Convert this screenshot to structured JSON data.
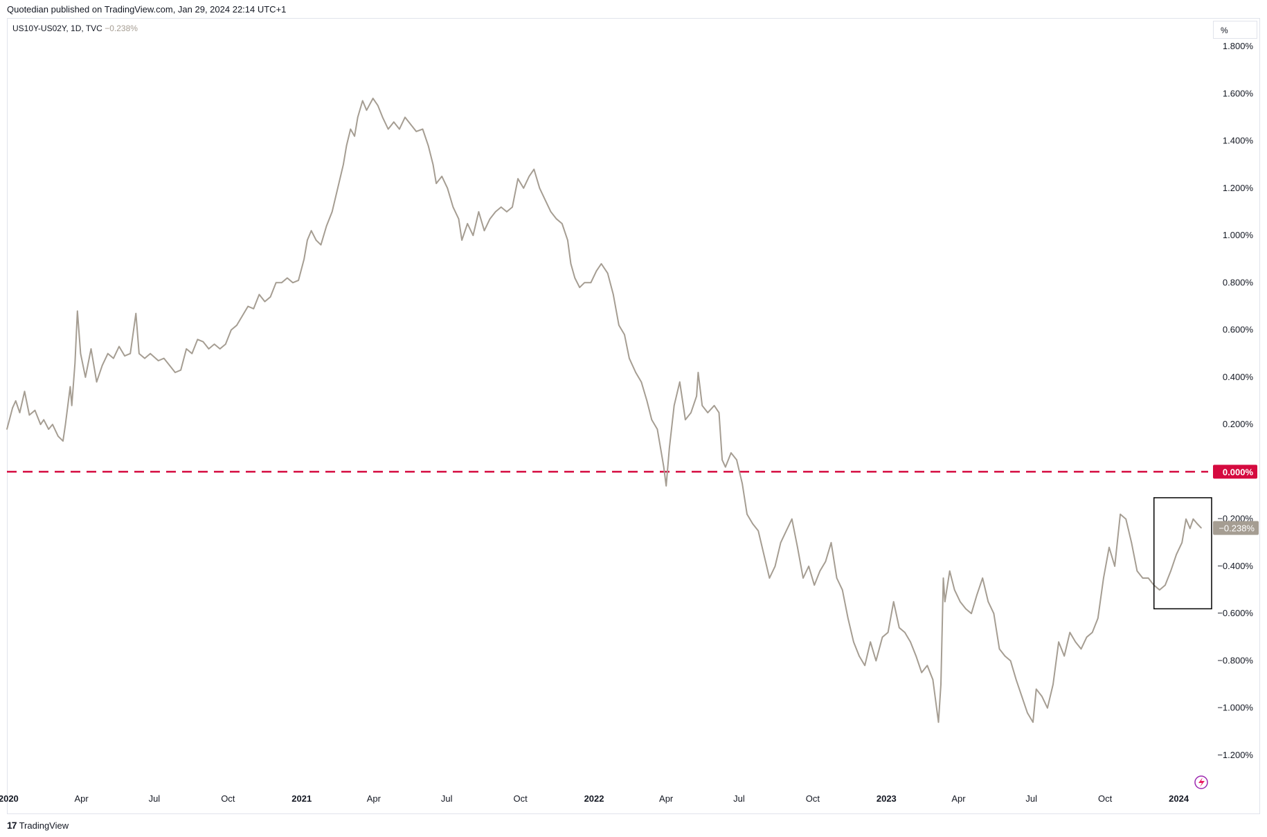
{
  "header": {
    "publish_text": "Quotedian published on TradingView.com, Jan 29, 2024 22:14 UTC+1"
  },
  "symbol": {
    "label": "US10Y-US02Y, 1D, TVC",
    "last_value": "−0.238%"
  },
  "unit_button": "%",
  "footer": {
    "logo_glyph": "17",
    "brand": "TradingView"
  },
  "colors": {
    "line": "#a59d92",
    "zero_line": "#d50a3f",
    "price_label_bg": "#a59d92",
    "zero_label_bg": "#d50a3f",
    "grid": "none"
  },
  "chart_data": {
    "type": "line",
    "title": "US10Y-US02Y, 1D, TVC",
    "xlabel": "",
    "ylabel": "%",
    "ylim": [
      -1.3,
      1.85
    ],
    "grid": false,
    "x_ticks": [
      {
        "label": "2020",
        "x": "2020-01-01",
        "year": true
      },
      {
        "label": "Apr",
        "x": "2020-04-01",
        "year": false
      },
      {
        "label": "Jul",
        "x": "2020-07-01",
        "year": false
      },
      {
        "label": "Oct",
        "x": "2020-10-01",
        "year": false
      },
      {
        "label": "2021",
        "x": "2021-01-01",
        "year": true
      },
      {
        "label": "Apr",
        "x": "2021-04-01",
        "year": false
      },
      {
        "label": "Jul",
        "x": "2021-07-01",
        "year": false
      },
      {
        "label": "Oct",
        "x": "2021-10-01",
        "year": false
      },
      {
        "label": "2022",
        "x": "2022-01-01",
        "year": true
      },
      {
        "label": "Apr",
        "x": "2022-04-01",
        "year": false
      },
      {
        "label": "Jul",
        "x": "2022-07-01",
        "year": false
      },
      {
        "label": "Oct",
        "x": "2022-10-01",
        "year": false
      },
      {
        "label": "2023",
        "x": "2023-01-01",
        "year": true
      },
      {
        "label": "Apr",
        "x": "2023-04-01",
        "year": false
      },
      {
        "label": "Jul",
        "x": "2023-07-01",
        "year": false
      },
      {
        "label": "Oct",
        "x": "2023-10-01",
        "year": false
      },
      {
        "label": "2024",
        "x": "2024-01-01",
        "year": true
      }
    ],
    "y_ticks": [
      {
        "value": 1.8,
        "label": "1.800%"
      },
      {
        "value": 1.6,
        "label": "1.600%"
      },
      {
        "value": 1.4,
        "label": "1.400%"
      },
      {
        "value": 1.2,
        "label": "1.200%"
      },
      {
        "value": 1.0,
        "label": "1.000%"
      },
      {
        "value": 0.8,
        "label": "0.800%"
      },
      {
        "value": 0.6,
        "label": "0.600%"
      },
      {
        "value": 0.4,
        "label": "0.400%"
      },
      {
        "value": 0.2,
        "label": "0.200%"
      },
      {
        "value": -0.2,
        "label": "−0.200%"
      },
      {
        "value": -0.4,
        "label": "−0.400%"
      },
      {
        "value": -0.6,
        "label": "−0.600%"
      },
      {
        "value": -0.8,
        "label": "−0.800%"
      },
      {
        "value": -1.0,
        "label": "−1.000%"
      },
      {
        "value": -1.2,
        "label": "−1.200%"
      }
    ],
    "zero_line": {
      "value": 0.0,
      "label": "0.000%"
    },
    "last_price": {
      "value": -0.238,
      "label": "−0.238%"
    },
    "highlight_box": {
      "x_start": "2023-12-01",
      "x_end": "2024-01-29",
      "y_low": -0.58,
      "y_high": -0.11
    },
    "series": [
      {
        "values": [
          [
            "2019-12-30",
            0.18
          ],
          [
            "2020-01-06",
            0.27
          ],
          [
            "2020-01-10",
            0.3
          ],
          [
            "2020-01-15",
            0.25
          ],
          [
            "2020-01-21",
            0.34
          ],
          [
            "2020-01-27",
            0.24
          ],
          [
            "2020-02-03",
            0.26
          ],
          [
            "2020-02-10",
            0.2
          ],
          [
            "2020-02-14",
            0.22
          ],
          [
            "2020-02-20",
            0.18
          ],
          [
            "2020-02-25",
            0.2
          ],
          [
            "2020-03-03",
            0.15
          ],
          [
            "2020-03-09",
            0.13
          ],
          [
            "2020-03-12",
            0.2
          ],
          [
            "2020-03-18",
            0.36
          ],
          [
            "2020-03-20",
            0.28
          ],
          [
            "2020-03-24",
            0.46
          ],
          [
            "2020-03-27",
            0.68
          ],
          [
            "2020-03-31",
            0.5
          ],
          [
            "2020-04-06",
            0.4
          ],
          [
            "2020-04-13",
            0.52
          ],
          [
            "2020-04-20",
            0.38
          ],
          [
            "2020-04-27",
            0.45
          ],
          [
            "2020-05-04",
            0.5
          ],
          [
            "2020-05-11",
            0.48
          ],
          [
            "2020-05-18",
            0.53
          ],
          [
            "2020-05-25",
            0.49
          ],
          [
            "2020-06-01",
            0.5
          ],
          [
            "2020-06-08",
            0.67
          ],
          [
            "2020-06-12",
            0.5
          ],
          [
            "2020-06-19",
            0.48
          ],
          [
            "2020-06-26",
            0.5
          ],
          [
            "2020-07-06",
            0.47
          ],
          [
            "2020-07-13",
            0.48
          ],
          [
            "2020-07-20",
            0.45
          ],
          [
            "2020-07-27",
            0.42
          ],
          [
            "2020-08-03",
            0.43
          ],
          [
            "2020-08-10",
            0.52
          ],
          [
            "2020-08-17",
            0.5
          ],
          [
            "2020-08-24",
            0.56
          ],
          [
            "2020-08-31",
            0.55
          ],
          [
            "2020-09-07",
            0.52
          ],
          [
            "2020-09-14",
            0.54
          ],
          [
            "2020-09-21",
            0.52
          ],
          [
            "2020-09-28",
            0.54
          ],
          [
            "2020-10-05",
            0.6
          ],
          [
            "2020-10-12",
            0.62
          ],
          [
            "2020-10-19",
            0.66
          ],
          [
            "2020-10-26",
            0.7
          ],
          [
            "2020-11-02",
            0.69
          ],
          [
            "2020-11-09",
            0.75
          ],
          [
            "2020-11-16",
            0.72
          ],
          [
            "2020-11-23",
            0.74
          ],
          [
            "2020-11-30",
            0.8
          ],
          [
            "2020-12-07",
            0.8
          ],
          [
            "2020-12-14",
            0.82
          ],
          [
            "2020-12-21",
            0.8
          ],
          [
            "2020-12-28",
            0.81
          ],
          [
            "2021-01-04",
            0.9
          ],
          [
            "2021-01-08",
            0.98
          ],
          [
            "2021-01-13",
            1.02
          ],
          [
            "2021-01-19",
            0.98
          ],
          [
            "2021-01-25",
            0.96
          ],
          [
            "2021-02-01",
            1.04
          ],
          [
            "2021-02-08",
            1.1
          ],
          [
            "2021-02-15",
            1.2
          ],
          [
            "2021-02-22",
            1.3
          ],
          [
            "2021-02-26",
            1.38
          ],
          [
            "2021-03-03",
            1.45
          ],
          [
            "2021-03-08",
            1.42
          ],
          [
            "2021-03-12",
            1.5
          ],
          [
            "2021-03-18",
            1.57
          ],
          [
            "2021-03-23",
            1.53
          ],
          [
            "2021-03-31",
            1.58
          ],
          [
            "2021-04-06",
            1.55
          ],
          [
            "2021-04-12",
            1.5
          ],
          [
            "2021-04-19",
            1.45
          ],
          [
            "2021-04-26",
            1.48
          ],
          [
            "2021-05-03",
            1.45
          ],
          [
            "2021-05-10",
            1.5
          ],
          [
            "2021-05-17",
            1.47
          ],
          [
            "2021-05-24",
            1.44
          ],
          [
            "2021-06-01",
            1.45
          ],
          [
            "2021-06-08",
            1.38
          ],
          [
            "2021-06-14",
            1.3
          ],
          [
            "2021-06-18",
            1.22
          ],
          [
            "2021-06-25",
            1.25
          ],
          [
            "2021-07-02",
            1.2
          ],
          [
            "2021-07-09",
            1.12
          ],
          [
            "2021-07-16",
            1.07
          ],
          [
            "2021-07-20",
            0.98
          ],
          [
            "2021-07-27",
            1.05
          ],
          [
            "2021-08-03",
            1.0
          ],
          [
            "2021-08-10",
            1.1
          ],
          [
            "2021-08-17",
            1.02
          ],
          [
            "2021-08-24",
            1.07
          ],
          [
            "2021-08-31",
            1.1
          ],
          [
            "2021-09-07",
            1.12
          ],
          [
            "2021-09-14",
            1.1
          ],
          [
            "2021-09-21",
            1.12
          ],
          [
            "2021-09-28",
            1.24
          ],
          [
            "2021-10-05",
            1.2
          ],
          [
            "2021-10-12",
            1.25
          ],
          [
            "2021-10-18",
            1.28
          ],
          [
            "2021-10-25",
            1.2
          ],
          [
            "2021-11-01",
            1.15
          ],
          [
            "2021-11-08",
            1.1
          ],
          [
            "2021-11-15",
            1.07
          ],
          [
            "2021-11-22",
            1.05
          ],
          [
            "2021-11-29",
            0.98
          ],
          [
            "2021-12-03",
            0.88
          ],
          [
            "2021-12-08",
            0.82
          ],
          [
            "2021-12-14",
            0.78
          ],
          [
            "2021-12-20",
            0.8
          ],
          [
            "2021-12-28",
            0.8
          ],
          [
            "2022-01-04",
            0.85
          ],
          [
            "2022-01-10",
            0.88
          ],
          [
            "2022-01-18",
            0.84
          ],
          [
            "2022-01-25",
            0.75
          ],
          [
            "2022-02-01",
            0.62
          ],
          [
            "2022-02-08",
            0.58
          ],
          [
            "2022-02-14",
            0.48
          ],
          [
            "2022-02-22",
            0.42
          ],
          [
            "2022-03-01",
            0.38
          ],
          [
            "2022-03-08",
            0.3
          ],
          [
            "2022-03-14",
            0.22
          ],
          [
            "2022-03-21",
            0.18
          ],
          [
            "2022-03-25",
            0.1
          ],
          [
            "2022-03-29",
            0.02
          ],
          [
            "2022-04-01",
            -0.06
          ],
          [
            "2022-04-05",
            0.1
          ],
          [
            "2022-04-11",
            0.28
          ],
          [
            "2022-04-18",
            0.38
          ],
          [
            "2022-04-25",
            0.22
          ],
          [
            "2022-05-02",
            0.25
          ],
          [
            "2022-05-09",
            0.32
          ],
          [
            "2022-05-11",
            0.42
          ],
          [
            "2022-05-16",
            0.28
          ],
          [
            "2022-05-23",
            0.25
          ],
          [
            "2022-05-31",
            0.28
          ],
          [
            "2022-06-06",
            0.25
          ],
          [
            "2022-06-10",
            0.05
          ],
          [
            "2022-06-14",
            0.02
          ],
          [
            "2022-06-21",
            0.08
          ],
          [
            "2022-06-28",
            0.05
          ],
          [
            "2022-07-05",
            -0.05
          ],
          [
            "2022-07-11",
            -0.18
          ],
          [
            "2022-07-18",
            -0.22
          ],
          [
            "2022-07-25",
            -0.25
          ],
          [
            "2022-08-01",
            -0.35
          ],
          [
            "2022-08-08",
            -0.45
          ],
          [
            "2022-08-15",
            -0.4
          ],
          [
            "2022-08-22",
            -0.3
          ],
          [
            "2022-08-29",
            -0.25
          ],
          [
            "2022-09-05",
            -0.2
          ],
          [
            "2022-09-12",
            -0.32
          ],
          [
            "2022-09-19",
            -0.45
          ],
          [
            "2022-09-26",
            -0.4
          ],
          [
            "2022-10-03",
            -0.48
          ],
          [
            "2022-10-10",
            -0.42
          ],
          [
            "2022-10-17",
            -0.38
          ],
          [
            "2022-10-24",
            -0.3
          ],
          [
            "2022-10-31",
            -0.45
          ],
          [
            "2022-11-07",
            -0.5
          ],
          [
            "2022-11-14",
            -0.62
          ],
          [
            "2022-11-21",
            -0.72
          ],
          [
            "2022-11-28",
            -0.78
          ],
          [
            "2022-12-05",
            -0.82
          ],
          [
            "2022-12-12",
            -0.72
          ],
          [
            "2022-12-19",
            -0.8
          ],
          [
            "2022-12-27",
            -0.7
          ],
          [
            "2023-01-03",
            -0.68
          ],
          [
            "2023-01-10",
            -0.55
          ],
          [
            "2023-01-17",
            -0.66
          ],
          [
            "2023-01-24",
            -0.68
          ],
          [
            "2023-01-31",
            -0.72
          ],
          [
            "2023-02-07",
            -0.78
          ],
          [
            "2023-02-14",
            -0.85
          ],
          [
            "2023-02-21",
            -0.82
          ],
          [
            "2023-02-28",
            -0.88
          ],
          [
            "2023-03-07",
            -1.06
          ],
          [
            "2023-03-10",
            -0.9
          ],
          [
            "2023-03-13",
            -0.45
          ],
          [
            "2023-03-15",
            -0.55
          ],
          [
            "2023-03-21",
            -0.42
          ],
          [
            "2023-03-27",
            -0.5
          ],
          [
            "2023-04-03",
            -0.55
          ],
          [
            "2023-04-10",
            -0.58
          ],
          [
            "2023-04-17",
            -0.6
          ],
          [
            "2023-04-24",
            -0.52
          ],
          [
            "2023-05-01",
            -0.45
          ],
          [
            "2023-05-08",
            -0.55
          ],
          [
            "2023-05-15",
            -0.6
          ],
          [
            "2023-05-22",
            -0.75
          ],
          [
            "2023-05-29",
            -0.78
          ],
          [
            "2023-06-05",
            -0.8
          ],
          [
            "2023-06-12",
            -0.88
          ],
          [
            "2023-06-19",
            -0.95
          ],
          [
            "2023-06-26",
            -1.02
          ],
          [
            "2023-07-03",
            -1.06
          ],
          [
            "2023-07-07",
            -0.92
          ],
          [
            "2023-07-14",
            -0.95
          ],
          [
            "2023-07-21",
            -1.0
          ],
          [
            "2023-07-28",
            -0.9
          ],
          [
            "2023-08-04",
            -0.72
          ],
          [
            "2023-08-11",
            -0.78
          ],
          [
            "2023-08-18",
            -0.68
          ],
          [
            "2023-08-25",
            -0.72
          ],
          [
            "2023-09-01",
            -0.75
          ],
          [
            "2023-09-08",
            -0.7
          ],
          [
            "2023-09-15",
            -0.68
          ],
          [
            "2023-09-22",
            -0.62
          ],
          [
            "2023-09-29",
            -0.45
          ],
          [
            "2023-10-06",
            -0.32
          ],
          [
            "2023-10-13",
            -0.4
          ],
          [
            "2023-10-20",
            -0.18
          ],
          [
            "2023-10-27",
            -0.2
          ],
          [
            "2023-11-03",
            -0.3
          ],
          [
            "2023-11-10",
            -0.42
          ],
          [
            "2023-11-17",
            -0.45
          ],
          [
            "2023-11-24",
            -0.45
          ],
          [
            "2023-12-01",
            -0.48
          ],
          [
            "2023-12-08",
            -0.5
          ],
          [
            "2023-12-15",
            -0.48
          ],
          [
            "2023-12-22",
            -0.42
          ],
          [
            "2023-12-29",
            -0.35
          ],
          [
            "2024-01-05",
            -0.3
          ],
          [
            "2024-01-10",
            -0.2
          ],
          [
            "2024-01-15",
            -0.24
          ],
          [
            "2024-01-19",
            -0.2
          ],
          [
            "2024-01-24",
            -0.22
          ],
          [
            "2024-01-29",
            -0.238
          ]
        ]
      }
    ]
  }
}
